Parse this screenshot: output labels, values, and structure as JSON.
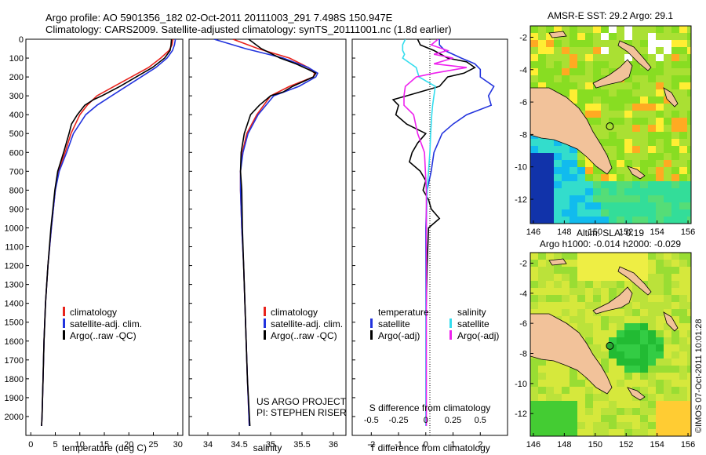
{
  "header": {
    "line1": "Argo profile: AO 5901356_182 02-Oct-2011 20111003_291 7.498S 150.947E",
    "line2": "Climatology: CARS2009. Satellite-adjusted climatology: synTS_20111001.nc (1.8d earlier)"
  },
  "colors": {
    "climatology": "#e8231c",
    "satellite": "#2233dd",
    "argo": "#000000",
    "sal_satellite": "#33ddee",
    "sal_argo": "#ee22ee"
  },
  "chart_data": [
    {
      "type": "line",
      "panel": "temperature",
      "xlabel": "temperature (deg C)",
      "ylabel": "",
      "xlim": [
        -1,
        31
      ],
      "ylim": [
        2100,
        0
      ],
      "xticks": [
        0,
        5,
        10,
        15,
        20,
        25,
        30
      ],
      "yticks": [
        0,
        100,
        200,
        300,
        400,
        500,
        600,
        700,
        800,
        900,
        1000,
        1100,
        1200,
        1300,
        1400,
        1500,
        1600,
        1700,
        1800,
        1900,
        2000
      ],
      "legend": [
        "climatology",
        "satellite-adj. clim.",
        "Argo(..raw -QC)"
      ],
      "series": [
        {
          "name": "climatology",
          "depth": [
            0,
            30,
            60,
            100,
            150,
            200,
            250,
            300,
            350,
            400,
            500,
            600,
            700,
            800,
            1000,
            1200,
            1400,
            1600,
            1800,
            2000,
            2050
          ],
          "values": [
            29.0,
            28.8,
            28.2,
            26.5,
            24.0,
            20.5,
            17.0,
            13.5,
            11.5,
            10.0,
            8.2,
            7.0,
            5.6,
            5.0,
            4.2,
            3.5,
            3.0,
            2.7,
            2.5,
            2.3,
            2.2
          ]
        },
        {
          "name": "satellite-adj. clim.",
          "depth": [
            0,
            30,
            60,
            100,
            150,
            200,
            250,
            300,
            350,
            400,
            500,
            600,
            700,
            800,
            1000,
            1200,
            1400,
            1600,
            1800,
            2000,
            2050
          ],
          "values": [
            29.5,
            29.3,
            28.9,
            27.8,
            25.5,
            22.5,
            19.5,
            16.5,
            13.5,
            11.2,
            8.7,
            7.3,
            5.8,
            5.0,
            4.2,
            3.5,
            3.0,
            2.7,
            2.5,
            2.3,
            2.2
          ]
        },
        {
          "name": "Argo(..raw -QC)",
          "depth": [
            0,
            30,
            60,
            100,
            150,
            200,
            250,
            300,
            320,
            350,
            400,
            450,
            500,
            600,
            700,
            800,
            1000,
            1200,
            1400,
            1600,
            1800,
            2000,
            2050
          ],
          "values": [
            28.7,
            28.6,
            28.4,
            27.3,
            24.8,
            21.5,
            18.2,
            14.5,
            12.8,
            11.0,
            9.5,
            8.3,
            7.8,
            6.7,
            5.5,
            4.9,
            4.1,
            3.5,
            3.0,
            2.7,
            2.5,
            2.3,
            2.2
          ]
        }
      ]
    },
    {
      "type": "line",
      "panel": "salinity",
      "xlabel": "salinity",
      "xlim": [
        33.7,
        36.2
      ],
      "ylim": [
        2100,
        0
      ],
      "xticks": [
        34,
        34.5,
        35,
        35.5,
        36
      ],
      "xtick_labels": [
        "34",
        "34.5",
        "35",
        "35.5",
        "36"
      ],
      "legend": [
        "climatology",
        "satellite-adj. clim.",
        "Argo(..raw -QC)"
      ],
      "series": [
        {
          "name": "climatology",
          "depth": [
            0,
            50,
            100,
            150,
            180,
            200,
            250,
            300,
            400,
            500,
            600,
            700,
            800,
            1000,
            1200,
            1500,
            1800,
            2050
          ],
          "values": [
            34.4,
            34.8,
            35.3,
            35.6,
            35.7,
            35.68,
            35.3,
            35.0,
            34.78,
            34.62,
            34.55,
            34.52,
            34.52,
            34.54,
            34.57,
            34.6,
            34.63,
            34.66
          ]
        },
        {
          "name": "satellite-adj. clim.",
          "depth": [
            0,
            50,
            100,
            150,
            180,
            200,
            250,
            300,
            400,
            500,
            600,
            700,
            800,
            1000,
            1200,
            1500,
            1800,
            2050
          ],
          "values": [
            34.1,
            34.6,
            35.2,
            35.6,
            35.75,
            35.72,
            35.45,
            35.05,
            34.8,
            34.64,
            34.56,
            34.52,
            34.52,
            34.54,
            34.57,
            34.6,
            34.63,
            34.66
          ]
        },
        {
          "name": "Argo(..raw -QC)",
          "depth": [
            0,
            50,
            100,
            130,
            160,
            180,
            200,
            220,
            250,
            280,
            300,
            350,
            400,
            500,
            600,
            700,
            800,
            1000,
            1200,
            1500,
            1800,
            2050
          ],
          "values": [
            34.65,
            34.85,
            35.15,
            35.4,
            35.6,
            35.72,
            35.68,
            35.55,
            35.35,
            35.2,
            35.0,
            34.82,
            34.68,
            34.58,
            34.53,
            34.52,
            34.54,
            34.55,
            34.57,
            34.6,
            34.63,
            34.67
          ]
        }
      ],
      "annotation": [
        "US ARGO PROJECT",
        "PI: STEPHEN RISER"
      ]
    },
    {
      "type": "line",
      "panel": "difference",
      "xlabel_bottom": "T difference from climatology",
      "xlabel_top": "S difference from climatology",
      "xlim": [
        -2.7,
        3.0
      ],
      "ylim": [
        2100,
        0
      ],
      "xticks_bottom": [
        -2,
        -1,
        0,
        1,
        2
      ],
      "xticks_top": [
        -0.5,
        -0.25,
        0,
        0.25,
        0.5
      ],
      "xticks_top_labels": [
        "-0.5",
        "-0.25",
        "0",
        "0.25",
        "0.5"
      ],
      "legend": {
        "temperature_heading": "temperature",
        "salinity_heading": "salinity",
        "temperature": [
          "satellite",
          "Argo(-adj)"
        ],
        "salinity": [
          "satellite",
          "Argo(-adj)"
        ]
      },
      "series": [
        {
          "name": "T satellite",
          "depth": [
            0,
            30,
            60,
            100,
            130,
            160,
            200,
            250,
            300,
            350,
            400,
            450,
            500,
            600,
            700,
            800,
            1000,
            1200,
            1500,
            1800,
            2050
          ],
          "values": [
            0.5,
            0.5,
            0.7,
            1.3,
            1.8,
            2.0,
            2.0,
            2.5,
            2.3,
            2.4,
            1.5,
            1.0,
            0.6,
            0.3,
            0.2,
            0.05,
            0.0,
            0.0,
            0.0,
            0.0,
            0.0
          ]
        },
        {
          "name": "T Argo(-adj)",
          "depth": [
            0,
            30,
            60,
            100,
            120,
            150,
            180,
            200,
            250,
            300,
            320,
            350,
            400,
            450,
            500,
            550,
            600,
            650,
            700,
            750,
            800,
            850,
            900,
            950,
            1000,
            1200,
            1500,
            1800,
            2050
          ],
          "values": [
            -0.3,
            -0.2,
            0.3,
            0.8,
            1.5,
            1.8,
            1.4,
            0.8,
            0.5,
            -0.7,
            -1.2,
            -1.0,
            -1.1,
            -0.7,
            0.0,
            -0.3,
            -0.5,
            -0.6,
            -0.2,
            0.0,
            -0.1,
            0.1,
            0.2,
            0.5,
            0.1,
            0.05,
            0.0,
            0.0,
            0.0
          ]
        },
        {
          "name": "S satellite",
          "depth": [
            0,
            30,
            60,
            80,
            100,
            150,
            200,
            250,
            300,
            350,
            400,
            500,
            600,
            800,
            1000,
            1200,
            1500,
            1800,
            2050
          ],
          "values": [
            -0.75,
            -0.85,
            -0.85,
            -0.78,
            -0.85,
            -0.35,
            -0.25,
            0.35,
            0.3,
            0.25,
            0.22,
            0.18,
            0.15,
            0.05,
            0.02,
            0.01,
            0.0,
            0.0,
            0.0
          ]
        },
        {
          "name": "S Argo(-adj)",
          "depth": [
            0,
            30,
            60,
            80,
            100,
            130,
            150,
            180,
            200,
            250,
            300,
            350,
            400,
            500,
            600,
            800,
            1000,
            1200,
            1500,
            1800,
            2050
          ],
          "values": [
            0.45,
            0.2,
            0.8,
            0.3,
            1.0,
            0.3,
            1.5,
            0.3,
            -0.35,
            -0.75,
            -0.8,
            -0.8,
            -0.45,
            -0.3,
            -0.05,
            0.02,
            0.02,
            0.02,
            0.02,
            0.02,
            0.02
          ]
        }
      ]
    },
    {
      "type": "heatmap",
      "panel": "sst_map",
      "title": "AMSR-E SST: 29.2 Argo: 29.1",
      "xticks": [
        146,
        148,
        150,
        152,
        154,
        156
      ],
      "yticks": [
        -2,
        -4,
        -6,
        -8,
        -10,
        -12
      ],
      "xlim": [
        145.8,
        156.2
      ],
      "ylim": [
        -13.5,
        -1.3
      ],
      "argo_position": [
        150.947,
        -7.498
      ]
    },
    {
      "type": "heatmap",
      "panel": "sla_map",
      "title": "Altim. SLA: 0.19",
      "subtitle": "Argo h1000: -0.014 h2000: -0.029",
      "xticks": [
        146,
        148,
        150,
        152,
        154,
        156
      ],
      "yticks": [
        -2,
        -4,
        -6,
        -8,
        -10,
        -12
      ],
      "xlim": [
        145.8,
        156.2
      ],
      "ylim": [
        -13.5,
        -1.3
      ],
      "argo_position": [
        150.947,
        -7.498
      ]
    }
  ],
  "credit": "©IMOS 07-Oct-2011 10:01:28"
}
